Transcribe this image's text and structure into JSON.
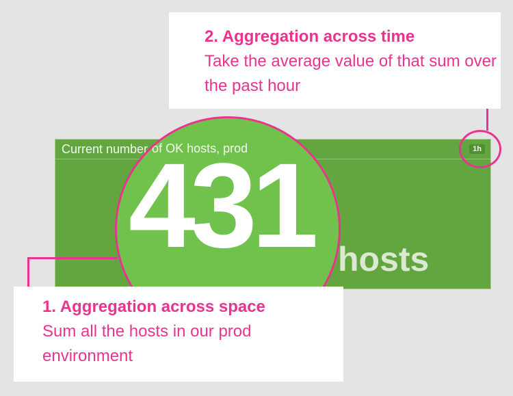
{
  "widget": {
    "title": "Current number of OK hosts, prod",
    "timeframe": "1h",
    "value": "431",
    "unit": "hosts",
    "background_color": "#63a63f"
  },
  "annotations": {
    "accent_color": "#e8348f",
    "time": {
      "heading": "2. Aggregation across time",
      "body": "Take the average value of that sum over the past hour"
    },
    "space": {
      "heading": "1. Aggregation across space",
      "body": "Sum all the hosts in our prod environment"
    }
  }
}
